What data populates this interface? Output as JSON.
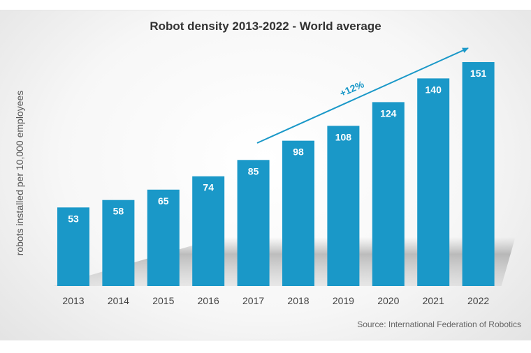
{
  "chart_data": {
    "type": "bar",
    "title": "Robot density 2013-2022 - World average",
    "xlabel": "",
    "ylabel": "robots installed per 10,000 employees",
    "categories": [
      "2013",
      "2014",
      "2015",
      "2016",
      "2017",
      "2018",
      "2019",
      "2020",
      "2021",
      "2022"
    ],
    "values": [
      53,
      58,
      65,
      74,
      85,
      98,
      108,
      124,
      140,
      151
    ],
    "ylim": [
      0,
      151
    ],
    "grid": false,
    "annotation": "+12%",
    "source": "Source: International Federation of Robotics",
    "colors": {
      "bar": "#1a98c8",
      "arrow": "#1a98c8"
    }
  }
}
